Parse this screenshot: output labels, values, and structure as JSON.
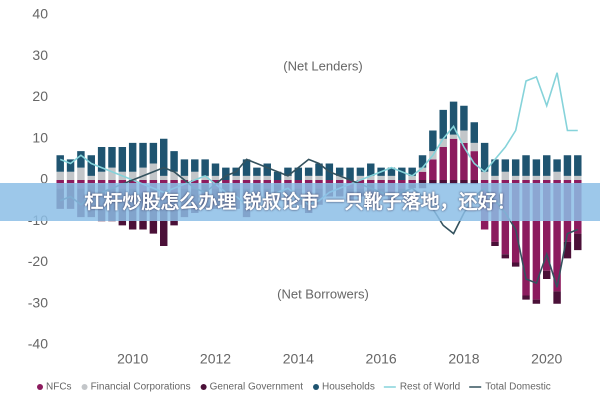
{
  "chart_data": {
    "type": "bar",
    "annotations": [
      "(Net Lenders)",
      "(Net Borrowers)"
    ],
    "banner": "杠杆炒股怎么办理 锐叔论市   一只靴子落地，还好！",
    "x": [
      2008,
      2008.25,
      2008.5,
      2008.75,
      2009,
      2009.25,
      2009.5,
      2009.75,
      2010,
      2010.25,
      2010.5,
      2010.75,
      2011,
      2011.25,
      2011.5,
      2011.75,
      2012,
      2012.25,
      2012.5,
      2012.75,
      2013,
      2013.25,
      2013.5,
      2013.75,
      2014,
      2014.25,
      2014.5,
      2014.75,
      2015,
      2015.25,
      2015.5,
      2015.75,
      2016,
      2016.25,
      2016.5,
      2016.75,
      2017,
      2017.25,
      2017.5,
      2017.75,
      2018,
      2018.25,
      2018.5,
      2018.75,
      2019,
      2019.25,
      2019.5,
      2019.75,
      2020,
      2020.25,
      2020.5,
      2020.75
    ],
    "xlim": [
      2008.1,
      2020.9
    ],
    "xticks": [
      2010,
      2012,
      2014,
      2016,
      2018,
      2020
    ],
    "ylim": [
      -40,
      40
    ],
    "yticks": [
      -40,
      -30,
      -20,
      -10,
      0,
      10,
      20,
      30,
      40
    ],
    "series": [
      {
        "name": "NFCs",
        "type": "bar",
        "color": "#8c1b5e",
        "values": [
          -1,
          -2,
          -1,
          -2,
          -1,
          -1,
          -2,
          -2,
          -2,
          -3,
          -2,
          -3,
          -3,
          -2,
          -2,
          -1,
          -2,
          -1,
          -2,
          -2,
          -1,
          -2,
          -1,
          -2,
          -2,
          -3,
          -2,
          -1,
          -1,
          -2,
          -2,
          -1,
          -2,
          -3,
          -2,
          -1,
          2,
          5,
          8,
          10,
          9,
          7,
          -12,
          -15,
          -18,
          -20,
          -28,
          -29,
          -22,
          -27,
          -15,
          -13
        ]
      },
      {
        "name": "Financial Corporations",
        "type": "bar",
        "color": "#c3c6c9",
        "values": [
          1,
          2,
          2,
          3,
          1,
          2,
          3,
          2,
          2,
          3,
          4,
          1,
          2,
          1,
          2,
          1,
          1,
          0,
          1,
          1,
          1,
          1,
          0,
          1,
          0,
          1,
          1,
          0,
          1,
          0,
          1,
          1,
          1,
          1,
          0,
          1,
          1,
          2,
          2,
          1,
          3,
          2,
          2,
          1,
          2,
          1,
          1,
          1,
          1,
          2,
          1,
          1
        ]
      },
      {
        "name": "General Government",
        "type": "bar",
        "color": "#4b1038",
        "values": [
          -3,
          -5,
          -6,
          -7,
          -8,
          -9,
          -8,
          -9,
          -10,
          -9,
          -11,
          -13,
          -8,
          -7,
          -6,
          -6,
          -5,
          -6,
          -5,
          -7,
          -5,
          -4,
          -4,
          -4,
          -4,
          -5,
          -4,
          -3,
          -3,
          -3,
          -2,
          -3,
          -2,
          -2,
          -2,
          -1,
          -2,
          -1,
          -1,
          -1,
          -1,
          -1,
          0,
          -1,
          -1,
          -1,
          -1,
          -1,
          -2,
          -3,
          -4,
          -4
        ]
      },
      {
        "name": "Households",
        "type": "bar",
        "color": "#1f5470",
        "values": [
          3,
          4,
          3,
          4,
          5,
          6,
          5,
          6,
          7,
          6,
          5,
          9,
          5,
          4,
          3,
          4,
          3,
          3,
          2,
          4,
          2,
          3,
          2,
          2,
          3,
          2,
          3,
          4,
          2,
          3,
          2,
          3,
          2,
          2,
          3,
          2,
          3,
          5,
          7,
          8,
          6,
          5,
          7,
          4,
          3,
          4,
          5,
          4,
          5,
          3,
          5,
          5
        ]
      },
      {
        "name": "Rest of World",
        "type": "line",
        "color": "#86d3da",
        "values": [
          3,
          5,
          4,
          6,
          4,
          3,
          2,
          1,
          0,
          -1,
          -2,
          -3,
          -2,
          -1,
          0,
          1,
          -1,
          -3,
          -4,
          -6,
          -5,
          -4,
          -3,
          -2,
          -4,
          -6,
          -5,
          -3,
          -2,
          -1,
          0,
          1,
          2,
          3,
          2,
          1,
          3,
          6,
          10,
          13,
          8,
          4,
          2,
          5,
          8,
          12,
          24,
          25,
          18,
          26,
          12,
          12
        ]
      },
      {
        "name": "Total Domestic",
        "type": "line",
        "color": "#34525e",
        "values": [
          -3,
          -5,
          -4,
          -6,
          -4,
          -3,
          -2,
          -1,
          0,
          1,
          2,
          3,
          2,
          0,
          -2,
          -3,
          -1,
          1,
          2,
          5,
          4,
          3,
          2,
          1,
          3,
          5,
          4,
          2,
          1,
          0,
          -1,
          -2,
          -3,
          -4,
          -3,
          -2,
          -4,
          -7,
          -11,
          -13,
          -8,
          -4,
          -2,
          -5,
          -8,
          -12,
          -24,
          -25,
          -18,
          -26,
          -13,
          -12
        ]
      }
    ]
  }
}
